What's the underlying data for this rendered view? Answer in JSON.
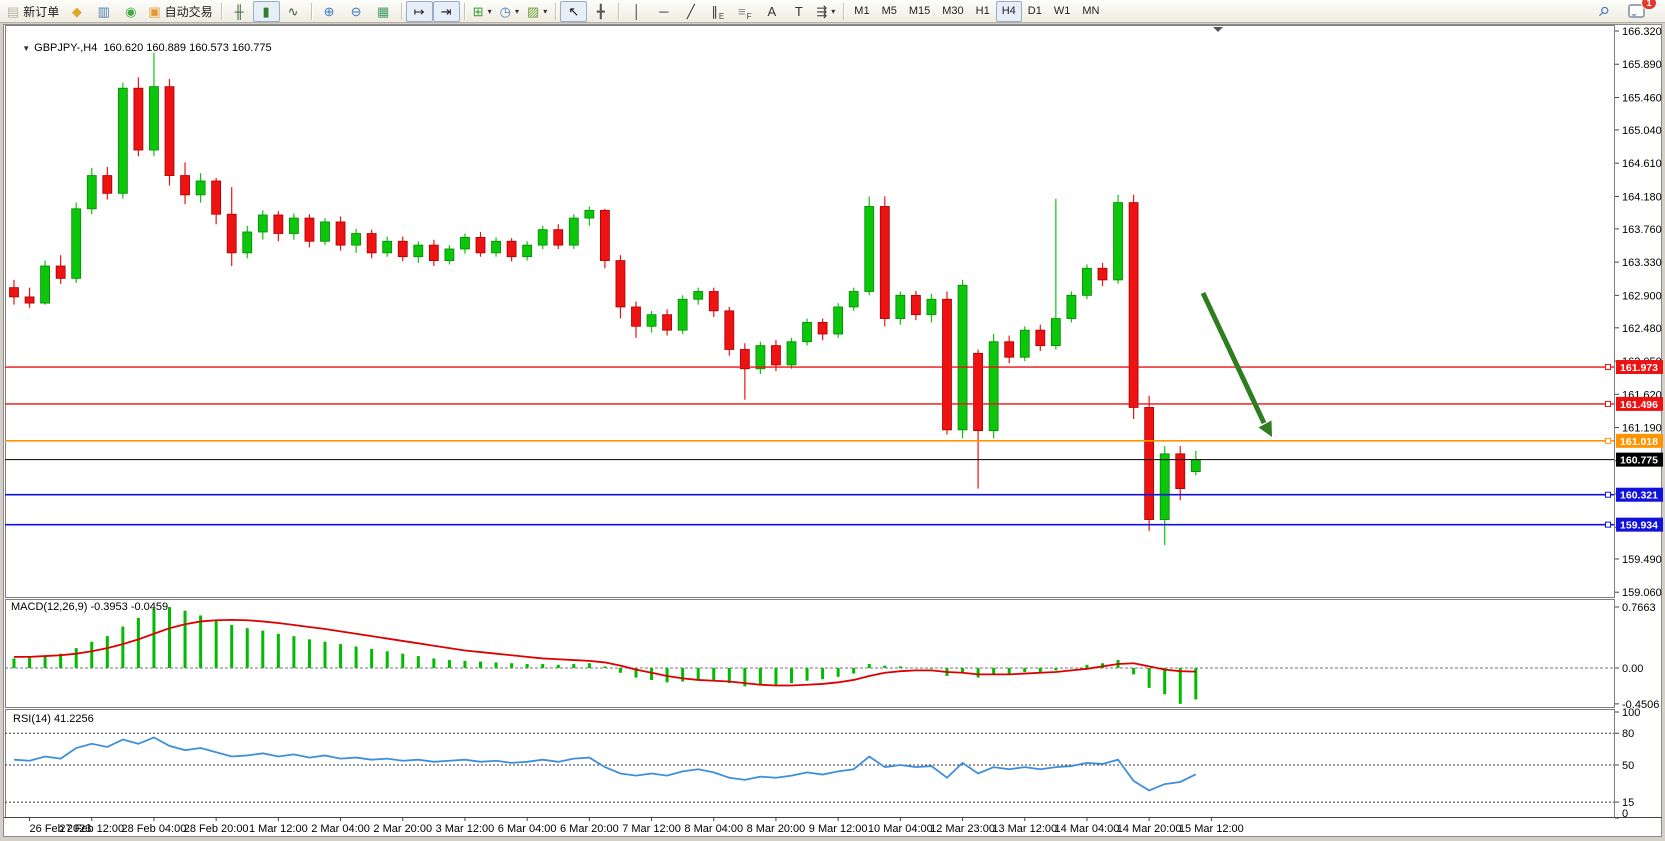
{
  "toolbar": {
    "buttons": [
      {
        "name": "new-order-button",
        "icon": "new-order-icon",
        "glyph": "▤",
        "color": "#b9b3a4",
        "label": "新订单"
      },
      {
        "name": "profiles-button",
        "icon": "profiles-icon",
        "glyph": "◆",
        "color": "#e0a829"
      },
      {
        "name": "market-watch-button",
        "icon": "market-watch-icon",
        "glyph": "▥",
        "color": "#4a7ebb"
      },
      {
        "name": "navigator-button",
        "icon": "navigator-icon",
        "glyph": "◉",
        "color": "#45a845"
      },
      {
        "name": "auto-trading-button",
        "icon": "auto-trading-icon",
        "glyph": "▣",
        "color": "#e09a2f",
        "label": "自动交易"
      },
      {
        "sep": true
      },
      {
        "name": "bar-chart-type-button",
        "icon": "ohlc-bars-icon",
        "glyph": "╫",
        "color": "#2f5f2f"
      },
      {
        "name": "candlestick-chart-type-button",
        "icon": "candlestick-icon",
        "glyph": "▮",
        "color": "#2f7d2f",
        "pressed": true
      },
      {
        "name": "line-chart-type-button",
        "icon": "line-chart-icon",
        "glyph": "∿",
        "color": "#2f5f2f"
      },
      {
        "sep": true
      },
      {
        "name": "zoom-in-button",
        "icon": "zoom-in-icon",
        "glyph": "⊕",
        "color": "#3f79c0"
      },
      {
        "name": "zoom-out-button",
        "icon": "zoom-out-icon",
        "glyph": "⊖",
        "color": "#3f79c0"
      },
      {
        "name": "tile-windows-button",
        "icon": "tile-windows-icon",
        "glyph": "▦",
        "color": "#3f9e5f"
      },
      {
        "sep": true
      },
      {
        "name": "auto-scroll-button",
        "icon": "auto-scroll-icon",
        "glyph": "↦",
        "color": "#1a1a1a",
        "pressed": true
      },
      {
        "name": "chart-shift-button",
        "icon": "chart-shift-icon",
        "glyph": "⇥",
        "color": "#1a1a1a",
        "pressed": true
      },
      {
        "sep": true
      },
      {
        "name": "add-indicator-button",
        "icon": "add-indicator-icon",
        "glyph": "⊞",
        "color": "#2f9e2f",
        "caret": true
      },
      {
        "name": "periods-button",
        "icon": "periods-clock-icon",
        "glyph": "◷",
        "color": "#3f79c0",
        "caret": true
      },
      {
        "name": "templates-button",
        "icon": "templates-icon",
        "glyph": "▨",
        "color": "#6f9e3f",
        "caret": true
      },
      {
        "sep": true
      },
      {
        "name": "cursor-button",
        "icon": "cursor-arrow-icon",
        "glyph": "↖",
        "color": "#111",
        "pressed": true
      },
      {
        "name": "crosshair-button",
        "icon": "crosshair-icon",
        "glyph": "╋",
        "color": "#555"
      },
      {
        "sep": true
      },
      {
        "name": "vertical-line-button",
        "icon": "vertical-line-icon",
        "glyph": "│",
        "color": "#333"
      },
      {
        "name": "horizontal-line-button",
        "icon": "horizontal-line-icon",
        "glyph": "─",
        "color": "#333"
      },
      {
        "name": "trendline-button",
        "icon": "trendline-icon",
        "glyph": "╱",
        "color": "#333"
      },
      {
        "name": "equidistant-channel-button",
        "icon": "channel-icon",
        "glyph": "∥",
        "color": "#333",
        "sub": "E"
      },
      {
        "name": "fibonacci-button",
        "icon": "fibonacci-icon",
        "glyph": "≡",
        "color": "#888",
        "sub": "F"
      },
      {
        "name": "text-button",
        "icon": "text-icon",
        "glyph": "A",
        "color": "#333"
      },
      {
        "name": "text-label-button",
        "icon": "text-label-icon",
        "glyph": "T",
        "color": "#333"
      },
      {
        "name": "arrows-button",
        "icon": "arrows-tool-icon",
        "glyph": "⇶",
        "color": "#333",
        "caret": true
      },
      {
        "sep": true
      }
    ],
    "timeframes": [
      {
        "label": "M1"
      },
      {
        "label": "M5"
      },
      {
        "label": "M15"
      },
      {
        "label": "M30"
      },
      {
        "label": "H1"
      },
      {
        "label": "H4",
        "pressed": true
      },
      {
        "label": "D1"
      },
      {
        "label": "W1"
      },
      {
        "label": "MN"
      }
    ],
    "search_glyph": "⚲",
    "chat_badge": "1"
  },
  "colors": {
    "bull": "#0cc60c",
    "bull_edge": "#008a00",
    "bear": "#ee1212",
    "bear_edge": "#a80000",
    "axis_text": "#000000",
    "arrow": "#2e7d1f"
  },
  "chart_data": {
    "type": "candlestick",
    "symbol": "GBPJPY-",
    "timeframe": "H4",
    "title_marker": "▼",
    "title": "GBPJPY-,H4  160.620 160.889 160.573 160.775",
    "ohlc_display": {
      "open": "160.620",
      "high": "160.889",
      "low": "160.573",
      "close": "160.775"
    },
    "ylim": [
      158.95,
      166.38
    ],
    "grid": false,
    "price_axis_ticks": [
      "166.320",
      "165.890",
      "165.460",
      "165.040",
      "164.610",
      "164.180",
      "163.760",
      "163.330",
      "162.900",
      "162.480",
      "162.050",
      "161.620",
      "161.190",
      "160.760",
      "160.330",
      "159.900",
      "159.490",
      "159.060"
    ],
    "hlines": [
      {
        "price": "161.973",
        "value": 161.973,
        "color": "#ee1111",
        "width": 1.4
      },
      {
        "price": "161.496",
        "value": 161.496,
        "color": "#ee1111",
        "width": 1.4
      },
      {
        "price": "161.018",
        "value": 161.018,
        "color": "#ff9400",
        "width": 1.6
      },
      {
        "price": "160.775",
        "value": 160.775,
        "color": "#000000",
        "width": 1.0,
        "current": true
      },
      {
        "price": "160.321",
        "value": 160.321,
        "color": "#1212dd",
        "width": 1.6
      },
      {
        "price": "159.934",
        "value": 159.934,
        "color": "#1212dd",
        "width": 1.6
      }
    ],
    "date_labels": [
      "26 Feb 2023",
      "27 Feb 12:00",
      "28 Feb 04:00",
      "28 Feb 20:00",
      "1 Mar 12:00",
      "2 Mar 04:00",
      "2 Mar 20:00",
      "3 Mar 12:00",
      "6 Mar 04:00",
      "6 Mar 20:00",
      "7 Mar 12:00",
      "8 Mar 04:00",
      "8 Mar 20:00",
      "9 Mar 12:00",
      "10 Mar 04:00",
      "12 Mar 23:00",
      "13 Mar 12:00",
      "14 Mar 04:00",
      "14 Mar 20:00",
      "15 Mar 12:00"
    ],
    "candles": [
      [
        163.0,
        163.1,
        162.78,
        162.88
      ],
      [
        162.88,
        163.0,
        162.74,
        162.8
      ],
      [
        162.8,
        163.35,
        162.78,
        163.28
      ],
      [
        163.28,
        163.42,
        163.05,
        163.12
      ],
      [
        163.12,
        164.1,
        163.06,
        164.02
      ],
      [
        164.02,
        164.55,
        163.95,
        164.45
      ],
      [
        164.45,
        164.56,
        164.14,
        164.22
      ],
      [
        164.22,
        165.65,
        164.15,
        165.58
      ],
      [
        165.58,
        165.72,
        164.7,
        164.78
      ],
      [
        164.78,
        166.04,
        164.7,
        165.6
      ],
      [
        165.6,
        165.7,
        164.32,
        164.45
      ],
      [
        164.45,
        164.62,
        164.08,
        164.2
      ],
      [
        164.2,
        164.48,
        164.1,
        164.38
      ],
      [
        164.38,
        164.42,
        163.82,
        163.95
      ],
      [
        163.95,
        164.3,
        163.28,
        163.45
      ],
      [
        163.45,
        163.8,
        163.38,
        163.72
      ],
      [
        163.72,
        164.0,
        163.62,
        163.94
      ],
      [
        163.94,
        163.99,
        163.6,
        163.7
      ],
      [
        163.7,
        163.96,
        163.62,
        163.9
      ],
      [
        163.9,
        163.95,
        163.52,
        163.6
      ],
      [
        163.6,
        163.9,
        163.55,
        163.85
      ],
      [
        163.85,
        163.92,
        163.48,
        163.55
      ],
      [
        163.55,
        163.76,
        163.45,
        163.7
      ],
      [
        163.7,
        163.75,
        163.38,
        163.45
      ],
      [
        163.45,
        163.66,
        163.4,
        163.6
      ],
      [
        163.6,
        163.66,
        163.34,
        163.4
      ],
      [
        163.4,
        163.6,
        163.32,
        163.55
      ],
      [
        163.55,
        163.62,
        163.28,
        163.35
      ],
      [
        163.35,
        163.55,
        163.3,
        163.5
      ],
      [
        163.5,
        163.7,
        163.44,
        163.65
      ],
      [
        163.65,
        163.72,
        163.4,
        163.45
      ],
      [
        163.45,
        163.65,
        163.4,
        163.6
      ],
      [
        163.6,
        163.64,
        163.34,
        163.4
      ],
      [
        163.4,
        163.6,
        163.35,
        163.55
      ],
      [
        163.55,
        163.8,
        163.5,
        163.75
      ],
      [
        163.75,
        163.82,
        163.5,
        163.55
      ],
      [
        163.55,
        163.95,
        163.5,
        163.9
      ],
      [
        163.9,
        164.05,
        163.8,
        164.0
      ],
      [
        164.0,
        164.02,
        163.25,
        163.35
      ],
      [
        163.35,
        163.42,
        162.6,
        162.75
      ],
      [
        162.75,
        162.82,
        162.35,
        162.5
      ],
      [
        162.5,
        162.7,
        162.42,
        162.65
      ],
      [
        162.65,
        162.72,
        162.38,
        162.45
      ],
      [
        162.45,
        162.9,
        162.4,
        162.85
      ],
      [
        162.85,
        163.0,
        162.78,
        162.95
      ],
      [
        162.95,
        163.0,
        162.62,
        162.7
      ],
      [
        162.7,
        162.75,
        162.12,
        162.2
      ],
      [
        162.2,
        162.28,
        161.55,
        161.95
      ],
      [
        161.95,
        162.3,
        161.88,
        162.25
      ],
      [
        162.25,
        162.32,
        161.92,
        162.0
      ],
      [
        162.0,
        162.35,
        161.95,
        162.3
      ],
      [
        162.3,
        162.6,
        162.25,
        162.55
      ],
      [
        162.55,
        162.6,
        162.32,
        162.4
      ],
      [
        162.4,
        162.8,
        162.35,
        162.75
      ],
      [
        162.75,
        163.0,
        162.7,
        162.95
      ],
      [
        162.95,
        164.18,
        162.9,
        164.05
      ],
      [
        164.05,
        164.18,
        162.5,
        162.6
      ],
      [
        162.6,
        162.95,
        162.52,
        162.9
      ],
      [
        162.9,
        162.96,
        162.58,
        162.65
      ],
      [
        162.65,
        162.92,
        162.55,
        162.85
      ],
      [
        162.85,
        162.95,
        161.1,
        161.16
      ],
      [
        161.16,
        163.1,
        161.05,
        163.03
      ],
      [
        162.15,
        162.2,
        160.4,
        161.15
      ],
      [
        161.15,
        162.4,
        161.05,
        162.3
      ],
      [
        162.3,
        162.38,
        162.02,
        162.1
      ],
      [
        162.1,
        162.5,
        162.05,
        162.45
      ],
      [
        162.45,
        162.52,
        162.18,
        162.25
      ],
      [
        162.25,
        164.15,
        162.2,
        162.6
      ],
      [
        162.6,
        162.95,
        162.55,
        162.9
      ],
      [
        162.9,
        163.3,
        162.85,
        163.25
      ],
      [
        163.25,
        163.32,
        163.02,
        163.1
      ],
      [
        163.1,
        164.2,
        163.05,
        164.1
      ],
      [
        164.1,
        164.2,
        161.3,
        161.45
      ],
      [
        161.45,
        161.6,
        159.85,
        160.0
      ],
      [
        160.0,
        160.95,
        159.67,
        160.85
      ],
      [
        160.85,
        160.95,
        160.25,
        160.4
      ],
      [
        160.62,
        160.889,
        160.573,
        160.775
      ]
    ],
    "macd": {
      "label_full": "MACD(12,26,9) -0.3953 -0.0459",
      "label": "MACD(12,26,9)",
      "main_value": "-0.3953",
      "signal_value": "-0.0459",
      "ticks": [
        "0.7663",
        "0.00",
        "-0.4506"
      ],
      "tick_values": [
        0.7663,
        0,
        -0.4506
      ],
      "hist_color": "#00bb00",
      "signal_color": "#dd0000",
      "hist": [
        0.12,
        0.13,
        0.15,
        0.18,
        0.25,
        0.33,
        0.4,
        0.52,
        0.63,
        0.74,
        0.766,
        0.72,
        0.66,
        0.6,
        0.54,
        0.5,
        0.47,
        0.43,
        0.4,
        0.36,
        0.33,
        0.3,
        0.27,
        0.24,
        0.21,
        0.18,
        0.15,
        0.12,
        0.1,
        0.09,
        0.08,
        0.07,
        0.06,
        0.05,
        0.05,
        0.04,
        0.05,
        0.06,
        0.02,
        -0.06,
        -0.12,
        -0.15,
        -0.18,
        -0.17,
        -0.15,
        -0.15,
        -0.19,
        -0.23,
        -0.22,
        -0.21,
        -0.19,
        -0.16,
        -0.14,
        -0.11,
        -0.07,
        0.05,
        0.03,
        0.02,
        0.0,
        -0.01,
        -0.1,
        -0.06,
        -0.12,
        -0.08,
        -0.07,
        -0.05,
        -0.05,
        -0.03,
        0.0,
        0.04,
        0.06,
        0.1,
        -0.08,
        -0.25,
        -0.33,
        -0.4506,
        -0.3953
      ],
      "signal": [
        0.14,
        0.14,
        0.15,
        0.16,
        0.18,
        0.21,
        0.25,
        0.3,
        0.36,
        0.43,
        0.5,
        0.55,
        0.585,
        0.6,
        0.605,
        0.6,
        0.585,
        0.565,
        0.54,
        0.515,
        0.49,
        0.46,
        0.43,
        0.4,
        0.37,
        0.34,
        0.31,
        0.28,
        0.25,
        0.22,
        0.2,
        0.18,
        0.16,
        0.14,
        0.12,
        0.11,
        0.1,
        0.09,
        0.07,
        0.03,
        -0.02,
        -0.06,
        -0.1,
        -0.13,
        -0.15,
        -0.16,
        -0.17,
        -0.19,
        -0.21,
        -0.22,
        -0.22,
        -0.21,
        -0.2,
        -0.18,
        -0.15,
        -0.1,
        -0.06,
        -0.04,
        -0.03,
        -0.03,
        -0.05,
        -0.06,
        -0.08,
        -0.08,
        -0.08,
        -0.07,
        -0.06,
        -0.05,
        -0.03,
        -0.01,
        0.02,
        0.05,
        0.06,
        0.02,
        -0.02,
        -0.04,
        -0.0459
      ]
    },
    "rsi": {
      "label_full": "RSI(14) 41.2256",
      "label": "RSI(14)",
      "value": "41.2256",
      "ticks": [
        "100",
        "80",
        "50",
        "15",
        "0"
      ],
      "tick_values": [
        100,
        80,
        50,
        15,
        0
      ],
      "levels": [
        80,
        50,
        15
      ],
      "line_color": "#3e8ede",
      "values": [
        55,
        54,
        58,
        56,
        66,
        70,
        67,
        74,
        70,
        76,
        68,
        64,
        66,
        62,
        58,
        59,
        61,
        58,
        60,
        57,
        59,
        56,
        57,
        55,
        56,
        54,
        55,
        53,
        54,
        55,
        53,
        54,
        52,
        53,
        55,
        53,
        56,
        57,
        48,
        42,
        40,
        42,
        40,
        44,
        46,
        43,
        38,
        36,
        39,
        38,
        40,
        43,
        41,
        44,
        46,
        58,
        48,
        50,
        48,
        49,
        38,
        52,
        42,
        48,
        46,
        48,
        46,
        48,
        49,
        52,
        51,
        55,
        35,
        26,
        32,
        34,
        41.2
      ]
    },
    "annotations": [
      {
        "type": "arrow",
        "direction": "down-right",
        "color": "#2e7d1f"
      }
    ]
  }
}
